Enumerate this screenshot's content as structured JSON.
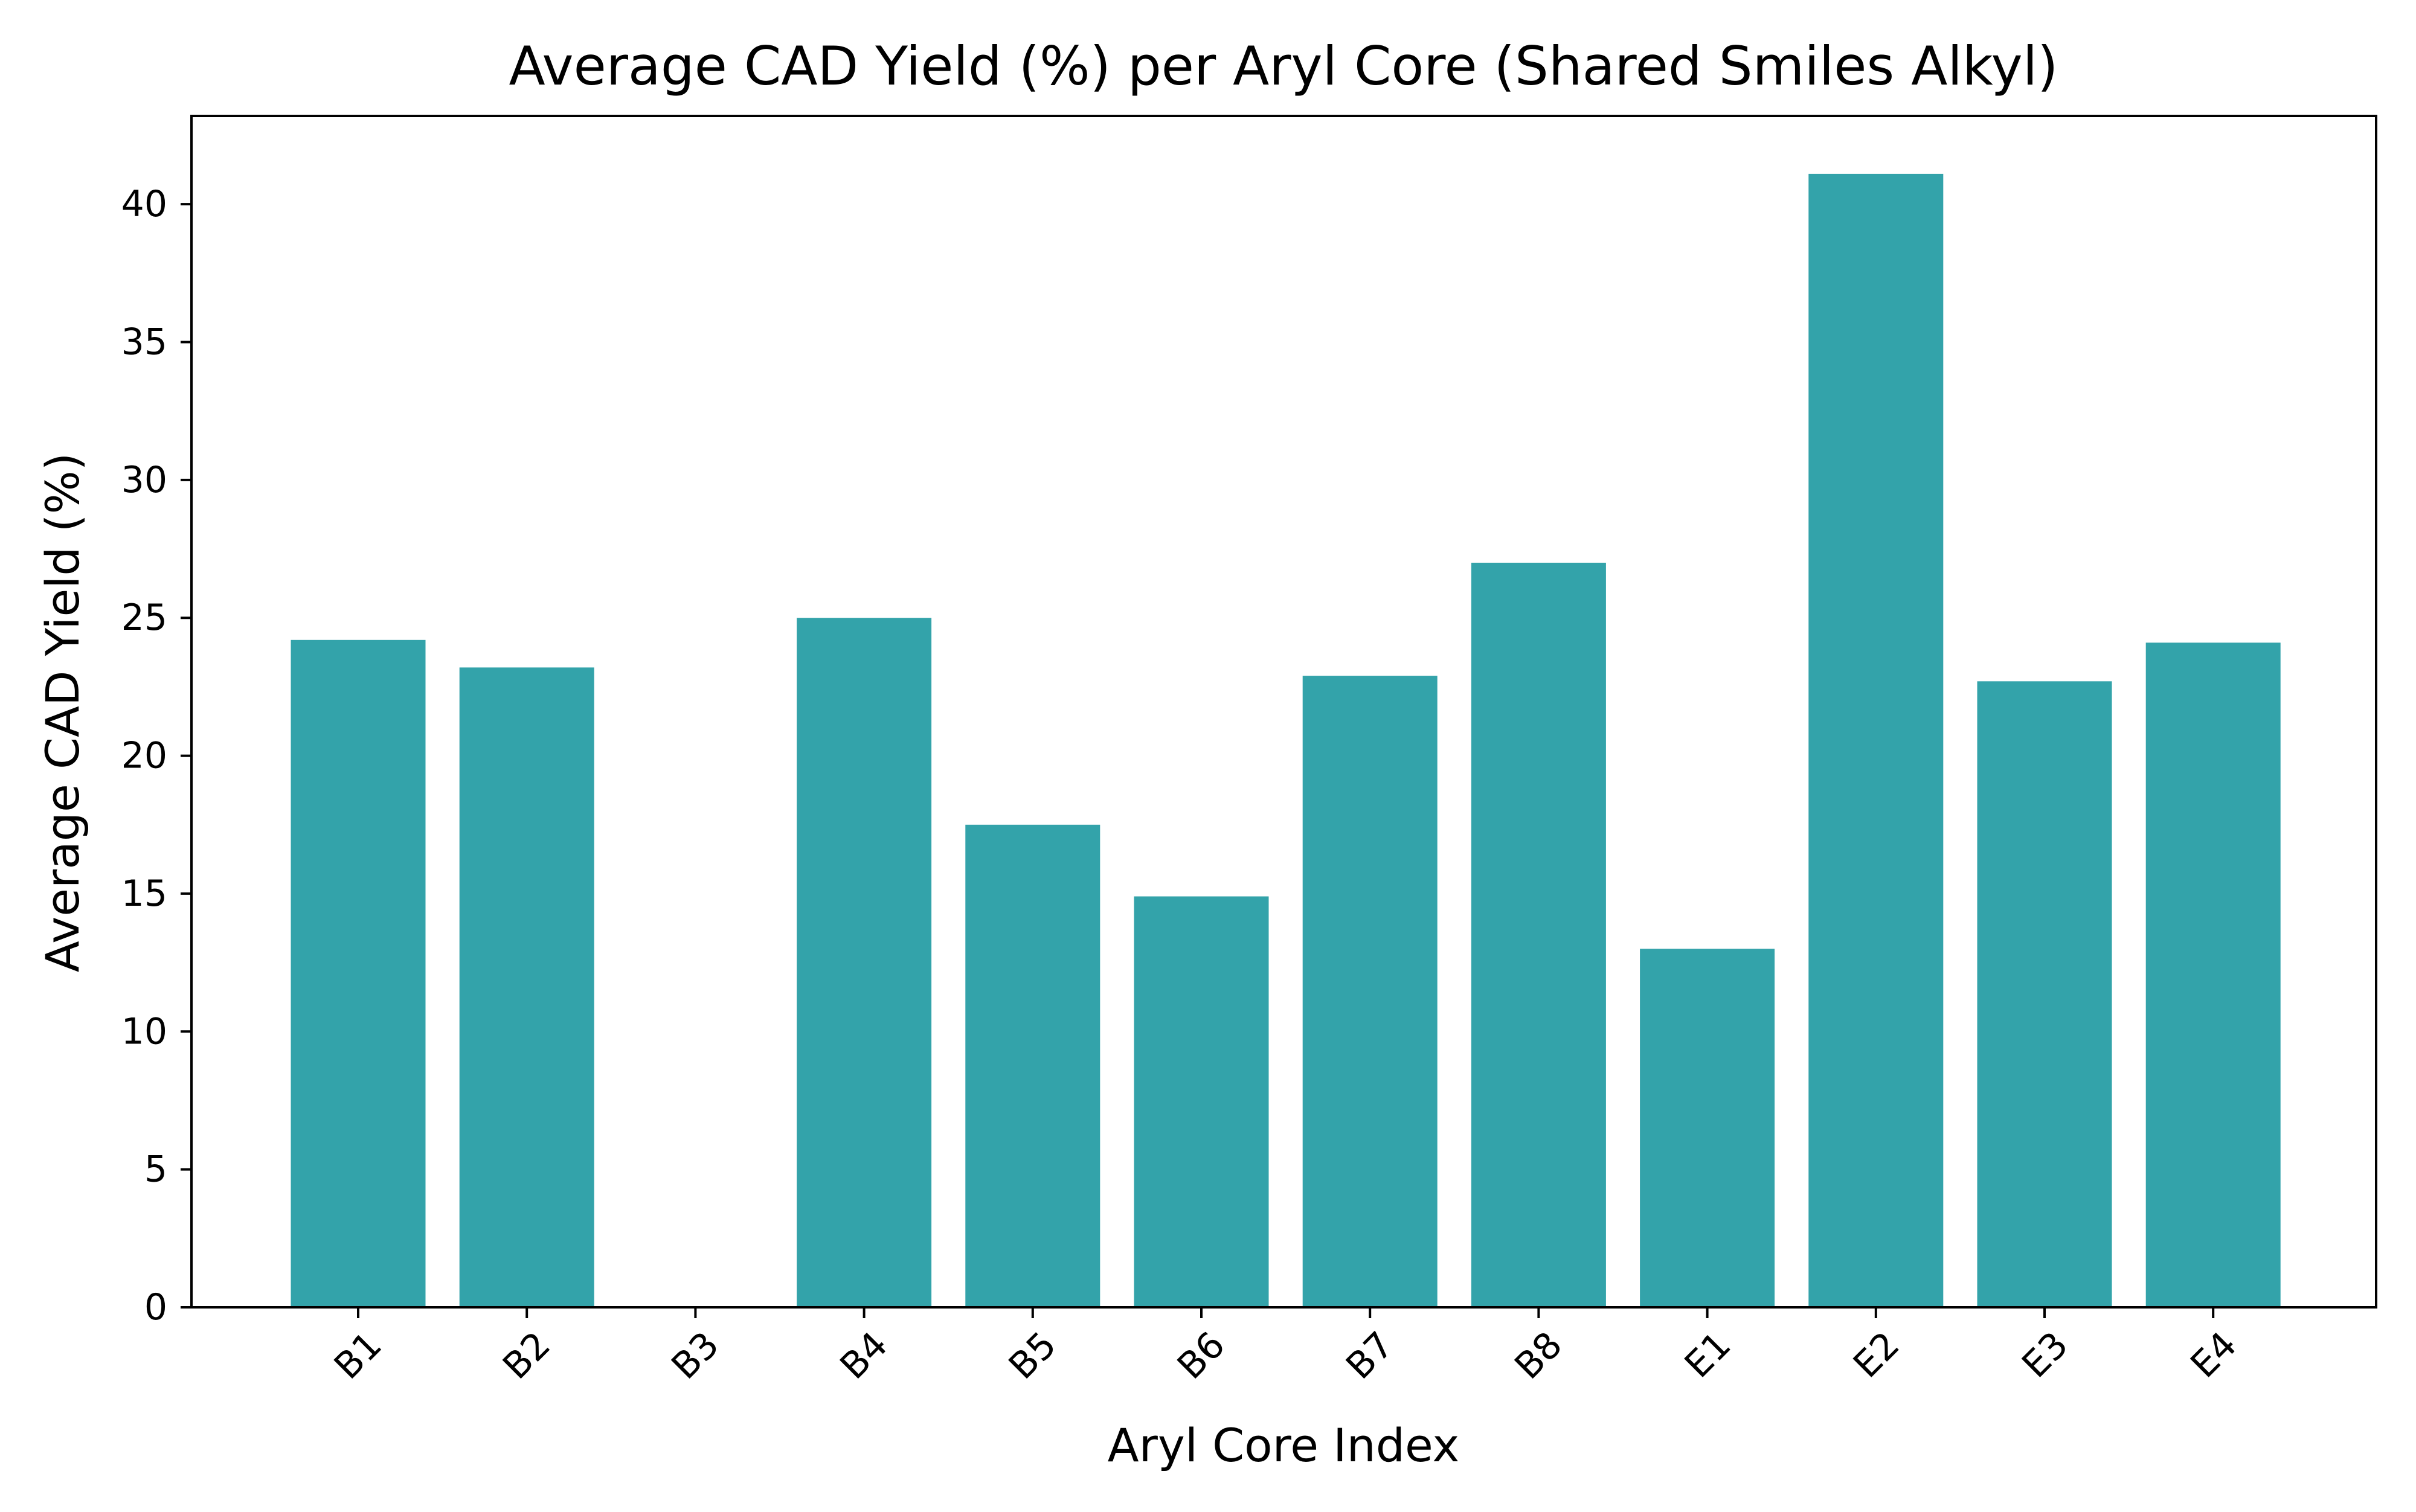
{
  "chart_data": {
    "type": "bar",
    "title": "Average CAD Yield (%) per Aryl Core (Shared Smiles Alkyl)",
    "xlabel": "Aryl Core Index",
    "ylabel": "Average CAD Yield (%)",
    "categories": [
      "B1",
      "B2",
      "B3",
      "B4",
      "B5",
      "B6",
      "B7",
      "B8",
      "E1",
      "E2",
      "E3",
      "E4"
    ],
    "values": [
      24.2,
      23.2,
      0,
      25.0,
      17.5,
      14.9,
      22.9,
      27.0,
      13.0,
      41.1,
      22.7,
      24.1
    ],
    "ylim": [
      0,
      43.2
    ],
    "yticks": [
      0,
      5,
      10,
      15,
      20,
      25,
      30,
      35,
      40
    ],
    "bar_color": "#33a3aa",
    "grid": false,
    "legend": "none",
    "xtick_rotation": 45
  }
}
